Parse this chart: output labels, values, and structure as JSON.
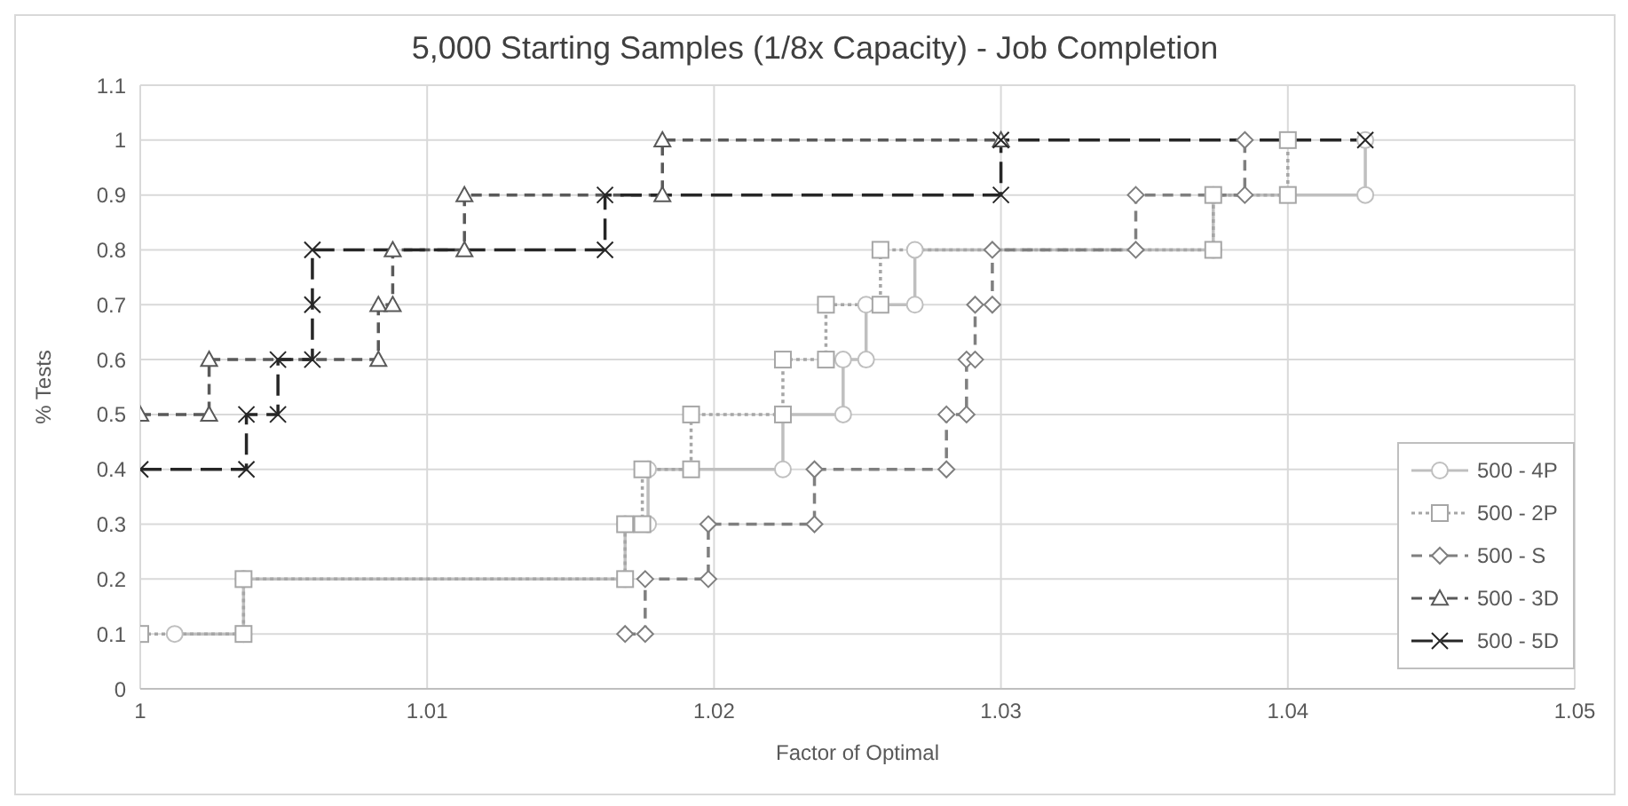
{
  "chart_data": {
    "type": "line",
    "title": "5,000 Starting Samples (1/8x Capacity) - Job Completion",
    "xlabel": "Factor of Optimal",
    "ylabel": "% Tests",
    "xlim": [
      1,
      1.05
    ],
    "xticks": [
      1,
      1.01,
      1.02,
      1.03,
      1.04,
      1.05
    ],
    "ylim": [
      0,
      1.1
    ],
    "yticks": [
      0,
      0.1,
      0.2,
      0.3,
      0.4,
      0.5,
      0.6,
      0.7,
      0.8,
      0.9,
      1,
      1.1
    ],
    "grid": true,
    "legend": "bottom right",
    "series": [
      {
        "name": "500 - 4P",
        "color": "#bfbfbf",
        "marker": "circle",
        "line_style": "solid",
        "x": [
          1.0012,
          1.0036,
          1.0036,
          1.0169,
          1.0169,
          1.0177,
          1.0177,
          1.0224,
          1.0224,
          1.0245,
          1.0245,
          1.0253,
          1.0253,
          1.027,
          1.027,
          1.0374,
          1.0374,
          1.0427,
          1.0427
        ],
        "values": [
          0.1,
          0.1,
          0.2,
          0.2,
          0.3,
          0.3,
          0.4,
          0.4,
          0.5,
          0.5,
          0.6,
          0.6,
          0.7,
          0.7,
          0.8,
          0.8,
          0.9,
          0.9,
          1
        ]
      },
      {
        "name": "500 - 2P",
        "color": "#a6a6a6",
        "marker": "square",
        "line_style": "dotted",
        "x": [
          1,
          1.0036,
          1.0036,
          1.0169,
          1.0169,
          1.0175,
          1.0175,
          1.0192,
          1.0192,
          1.0224,
          1.0224,
          1.0239,
          1.0239,
          1.0258,
          1.0258,
          1.0374,
          1.0374,
          1.04,
          1.04
        ],
        "values": [
          0.1,
          0.1,
          0.2,
          0.2,
          0.3,
          0.3,
          0.4,
          0.4,
          0.5,
          0.5,
          0.6,
          0.6,
          0.7,
          0.7,
          0.8,
          0.8,
          0.9,
          0.9,
          1
        ]
      },
      {
        "name": "500 - S",
        "color": "#7f7f7f",
        "marker": "diamond",
        "line_style": "dashed",
        "x": [
          1.0169,
          1.0176,
          1.0176,
          1.0198,
          1.0198,
          1.0235,
          1.0235,
          1.0281,
          1.0281,
          1.0288,
          1.0288,
          1.0291,
          1.0291,
          1.0297,
          1.0297,
          1.0347,
          1.0347,
          1.0385,
          1.0385
        ],
        "values": [
          0.1,
          0.1,
          0.2,
          0.2,
          0.3,
          0.3,
          0.4,
          0.4,
          0.5,
          0.5,
          0.6,
          0.6,
          0.7,
          0.7,
          0.8,
          0.8,
          0.9,
          0.9,
          1
        ]
      },
      {
        "name": "500 - 3D",
        "color": "#595959",
        "marker": "triangle",
        "line_style": "dashed",
        "x": [
          1,
          1.0024,
          1.0024,
          1.0083,
          1.0083,
          1.0088,
          1.0088,
          1.0113,
          1.0113,
          1.0182,
          1.0182,
          1.03
        ],
        "values": [
          0.5,
          0.5,
          0.6,
          0.6,
          0.7,
          0.7,
          0.8,
          0.8,
          0.9,
          0.9,
          1,
          1
        ]
      },
      {
        "name": "500 - 5D",
        "color": "#262626",
        "marker": "cross",
        "line_style": "dashed",
        "x": [
          1,
          1.0037,
          1.0037,
          1.0048,
          1.0048,
          1.006,
          1.006,
          1.006,
          1.0162,
          1.0162,
          1.03,
          1.03,
          1.0427
        ],
        "values": [
          0.4,
          0.4,
          0.5,
          0.5,
          0.6,
          0.6,
          0.7,
          0.8,
          0.8,
          0.9,
          0.9,
          1,
          1
        ]
      }
    ]
  }
}
